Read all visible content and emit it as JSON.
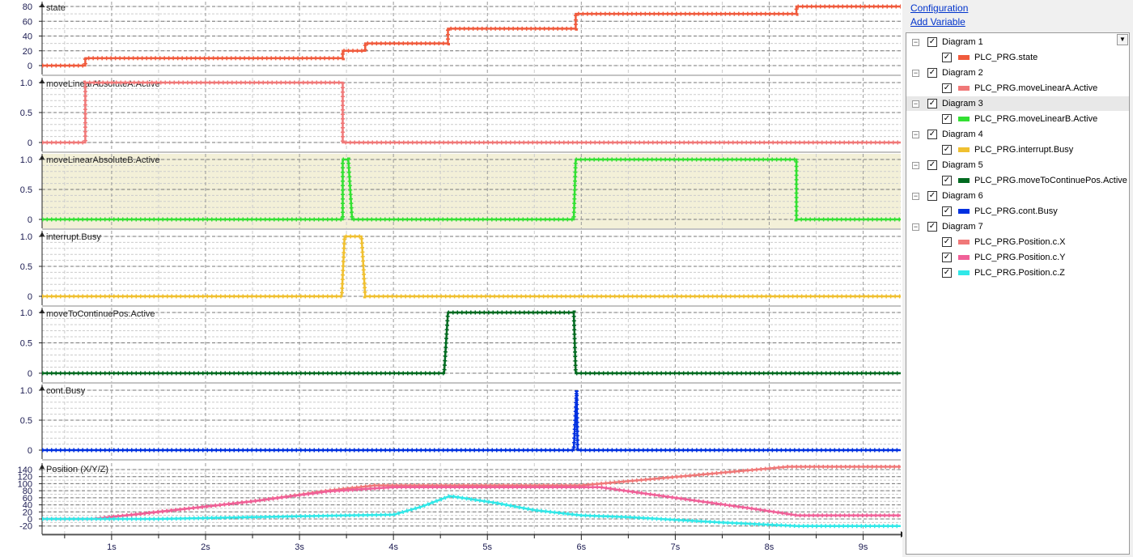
{
  "sidebar": {
    "configuration_link": "Configuration",
    "add_variable_link": "Add Variable",
    "diagrams": [
      {
        "label": "Diagram 1",
        "variables": [
          {
            "name": "PLC_PRG.state",
            "color": "#f05a3c"
          }
        ]
      },
      {
        "label": "Diagram 2",
        "variables": [
          {
            "name": "PLC_PRG.moveLinearA.Active",
            "color": "#f07878"
          }
        ]
      },
      {
        "label": "Diagram 3",
        "selected": true,
        "variables": [
          {
            "name": "PLC_PRG.moveLinearB.Active",
            "color": "#33e033"
          }
        ]
      },
      {
        "label": "Diagram 4",
        "variables": [
          {
            "name": "PLC_PRG.interrupt.Busy",
            "color": "#f0c030"
          }
        ]
      },
      {
        "label": "Diagram 5",
        "variables": [
          {
            "name": "PLC_PRG.moveToContinuePos.Active",
            "color": "#006a20"
          }
        ]
      },
      {
        "label": "Diagram 6",
        "variables": [
          {
            "name": "PLC_PRG.cont.Busy",
            "color": "#0030e0"
          }
        ]
      },
      {
        "label": "Diagram 7",
        "variables": [
          {
            "name": "PLC_PRG.Position.c.X",
            "color": "#f07878"
          },
          {
            "name": "PLC_PRG.Position.c.Y",
            "color": "#f06098"
          },
          {
            "name": "PLC_PRG.Position.c.Z",
            "color": "#30e8e8"
          }
        ]
      }
    ]
  },
  "chart_data": {
    "type": "line",
    "x_ticks": [
      "1s",
      "2s",
      "3s",
      "4s",
      "5s",
      "6s",
      "7s",
      "8s",
      "9s"
    ],
    "xlim": [
      0.26,
      9.4
    ],
    "panels": [
      {
        "title": "state",
        "ylim": [
          0,
          95
        ],
        "yticks": [
          "0",
          "20",
          "40",
          "60",
          "80"
        ],
        "ytick_values": [
          0,
          20,
          40,
          60,
          80
        ],
        "step": true,
        "series": [
          {
            "color": "#f05a3c",
            "points": [
              [
                0.26,
                0
              ],
              [
                0.72,
                0
              ],
              [
                0.72,
                10
              ],
              [
                3.46,
                10
              ],
              [
                3.46,
                20
              ],
              [
                3.7,
                20
              ],
              [
                3.7,
                30
              ],
              [
                4.58,
                30
              ],
              [
                4.58,
                50
              ],
              [
                5.94,
                50
              ],
              [
                5.94,
                70
              ],
              [
                8.29,
                70
              ],
              [
                8.29,
                80
              ],
              [
                9.4,
                80
              ]
            ]
          }
        ]
      },
      {
        "title": "moveLinearAbsoluteA.Active",
        "ylim": [
          0,
          1.1
        ],
        "yticks": [
          "0",
          "0.5",
          "1.0"
        ],
        "ytick_values": [
          0,
          0.5,
          1
        ],
        "series": [
          {
            "color": "#f07878",
            "points": [
              [
                0.26,
                0
              ],
              [
                0.72,
                0
              ],
              [
                0.72,
                1
              ],
              [
                3.46,
                1
              ],
              [
                3.46,
                0
              ],
              [
                9.4,
                0
              ]
            ]
          }
        ]
      },
      {
        "title": "moveLinearAbsoluteB.Active",
        "ylim": [
          0,
          1.1
        ],
        "yticks": [
          "0",
          "0.5",
          "1.0"
        ],
        "ytick_values": [
          0,
          0.5,
          1
        ],
        "highlighted": true,
        "series": [
          {
            "color": "#33e033",
            "points": [
              [
                0.26,
                0
              ],
              [
                3.46,
                0
              ],
              [
                3.46,
                1
              ],
              [
                3.52,
                1
              ],
              [
                3.56,
                0
              ],
              [
                5.92,
                0
              ],
              [
                5.94,
                1
              ],
              [
                8.29,
                1
              ],
              [
                8.29,
                0
              ],
              [
                9.4,
                0
              ]
            ]
          }
        ]
      },
      {
        "title": "interrupt.Busy",
        "ylim": [
          0,
          1.1
        ],
        "yticks": [
          "0",
          "0.5",
          "1.0"
        ],
        "ytick_values": [
          0,
          0.5,
          1
        ],
        "series": [
          {
            "color": "#f0c030",
            "points": [
              [
                0.26,
                0
              ],
              [
                3.45,
                0
              ],
              [
                3.48,
                1
              ],
              [
                3.66,
                1
              ],
              [
                3.7,
                0
              ],
              [
                9.4,
                0
              ]
            ]
          }
        ]
      },
      {
        "title": "moveToContinuePos.Active",
        "ylim": [
          0,
          1.1
        ],
        "yticks": [
          "0",
          "0.5",
          "1.0"
        ],
        "ytick_values": [
          0,
          0.5,
          1
        ],
        "series": [
          {
            "color": "#006a20",
            "points": [
              [
                0.26,
                0
              ],
              [
                4.54,
                0
              ],
              [
                4.58,
                1
              ],
              [
                5.92,
                1
              ],
              [
                5.94,
                0
              ],
              [
                9.4,
                0
              ]
            ]
          }
        ]
      },
      {
        "title": "cont.Busy",
        "ylim": [
          0,
          1.1
        ],
        "yticks": [
          "0",
          "0.5",
          "1.0"
        ],
        "ytick_values": [
          0,
          0.5,
          1
        ],
        "series": [
          {
            "color": "#0030e0",
            "points": [
              [
                0.26,
                0
              ],
              [
                5.92,
                0
              ],
              [
                5.95,
                1
              ],
              [
                5.96,
                0
              ],
              [
                9.4,
                0
              ]
            ]
          }
        ]
      },
      {
        "title": "Position (X/Y/Z)",
        "ylim": [
          -25,
          145
        ],
        "yticks": [
          "-20",
          "0",
          "20",
          "40",
          "60",
          "80",
          "100",
          "120",
          "140"
        ],
        "ytick_values": [
          -20,
          0,
          20,
          40,
          60,
          80,
          100,
          120,
          140
        ],
        "series": [
          {
            "name": "PLC_PRG.Position.c.X",
            "color": "#f07878",
            "points": [
              [
                0.26,
                0
              ],
              [
                0.8,
                0
              ],
              [
                1.5,
                20
              ],
              [
                2.5,
                50
              ],
              [
                3.3,
                80
              ],
              [
                3.8,
                95
              ],
              [
                6,
                95
              ],
              [
                8.2,
                148
              ],
              [
                9.4,
                148
              ]
            ]
          },
          {
            "name": "PLC_PRG.Position.c.Y",
            "color": "#f06098",
            "points": [
              [
                0.26,
                0
              ],
              [
                0.8,
                0
              ],
              [
                1.5,
                20
              ],
              [
                2.5,
                50
              ],
              [
                3.3,
                78
              ],
              [
                4,
                90
              ],
              [
                6.2,
                90
              ],
              [
                7,
                60
              ],
              [
                7.8,
                30
              ],
              [
                8.3,
                10
              ],
              [
                9.4,
                10
              ]
            ]
          },
          {
            "name": "PLC_PRG.Position.c.Z",
            "color": "#30e8e8",
            "points": [
              [
                0.26,
                0
              ],
              [
                1.5,
                0
              ],
              [
                2.5,
                5
              ],
              [
                3.5,
                10
              ],
              [
                4,
                12
              ],
              [
                4.3,
                35
              ],
              [
                4.6,
                65
              ],
              [
                5.1,
                45
              ],
              [
                5.5,
                25
              ],
              [
                6,
                10
              ],
              [
                6.5,
                5
              ],
              [
                7.5,
                -10
              ],
              [
                8.3,
                -20
              ],
              [
                9.4,
                -20
              ]
            ]
          }
        ]
      }
    ]
  }
}
